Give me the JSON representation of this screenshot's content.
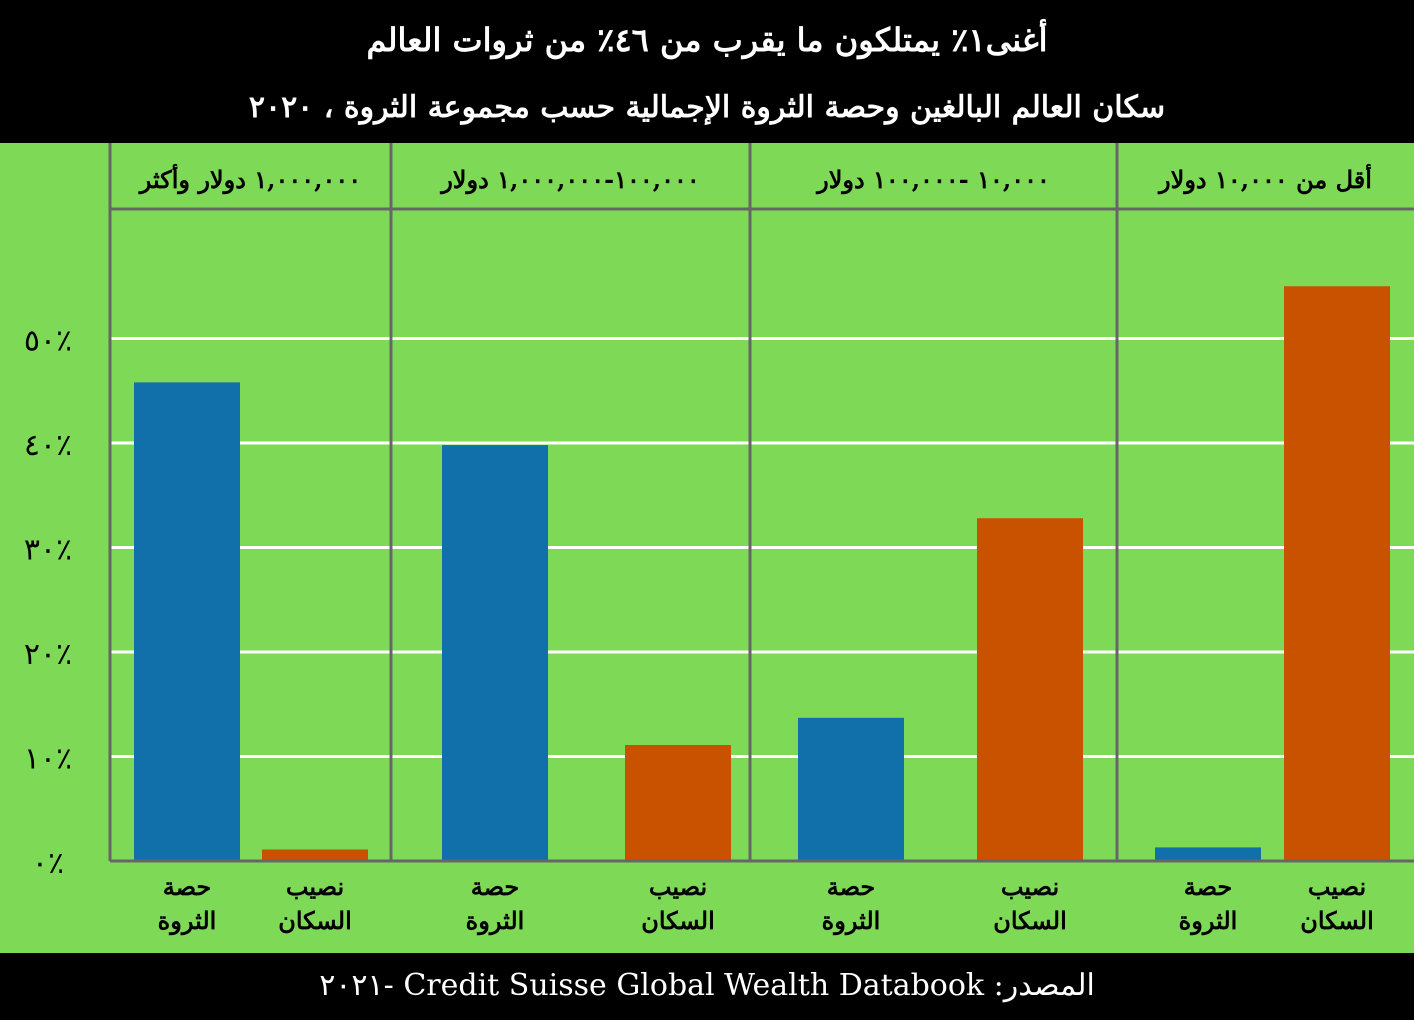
{
  "title": "أغنى١٪ يمتلكون ما يقرب من ٤٦٪ من ثروات العالم",
  "subtitle": "سكان العالم البالغين وحصة الثروة الإجمالية حسب مجموعة الثروة ، ٢٠٢٠",
  "source": "المصدر: Credit Suisse Global Wealth Databook -٢٠٢١",
  "colors": {
    "background": "#7ed957",
    "header_bg": "#000000",
    "wealth": "#1170aa",
    "population": "#c85200",
    "grid": "#ffffff",
    "divider": "#666666"
  },
  "chart_data": {
    "type": "bar",
    "y_unit": "%",
    "ylim": [
      0,
      60
    ],
    "yticks": [
      0,
      10,
      20,
      30,
      40,
      50
    ],
    "ytick_labels": [
      "٪٠",
      "٪١٠",
      "٪٢٠",
      "٪٣٠",
      "٪٤٠",
      "٪٥٠"
    ],
    "grid": true,
    "groups": [
      {
        "label": "١,٠٠٠,٠٠٠ دولار وأكثر",
        "bars": [
          {
            "series": "wealth",
            "label_line1": "حصة",
            "label_line2": "الثروة",
            "value": 45.8
          },
          {
            "series": "population",
            "label_line1": "نصيب",
            "label_line2": "السكان",
            "value": 1.1
          }
        ]
      },
      {
        "label": "١٠٠,٠٠٠-١,٠٠٠,٠٠٠ دولار",
        "bars": [
          {
            "series": "wealth",
            "label_line1": "حصة",
            "label_line2": "الثروة",
            "value": 39.8
          },
          {
            "series": "population",
            "label_line1": "نصيب",
            "label_line2": "السكان",
            "value": 11.1
          }
        ]
      },
      {
        "label": "١٠,٠٠٠ -١٠٠,٠٠٠ دولار",
        "bars": [
          {
            "series": "wealth",
            "label_line1": "حصة",
            "label_line2": "الثروة",
            "value": 13.7
          },
          {
            "series": "population",
            "label_line1": "نصيب",
            "label_line2": "السكان",
            "value": 32.8
          }
        ]
      },
      {
        "label": "أقل من ١٠,٠٠٠ دولار",
        "bars": [
          {
            "series": "wealth",
            "label_line1": "حصة",
            "label_line2": "الثروة",
            "value": 1.3
          },
          {
            "series": "population",
            "label_line1": "نصيب",
            "label_line2": "السكان",
            "value": 55.0
          }
        ]
      }
    ]
  }
}
